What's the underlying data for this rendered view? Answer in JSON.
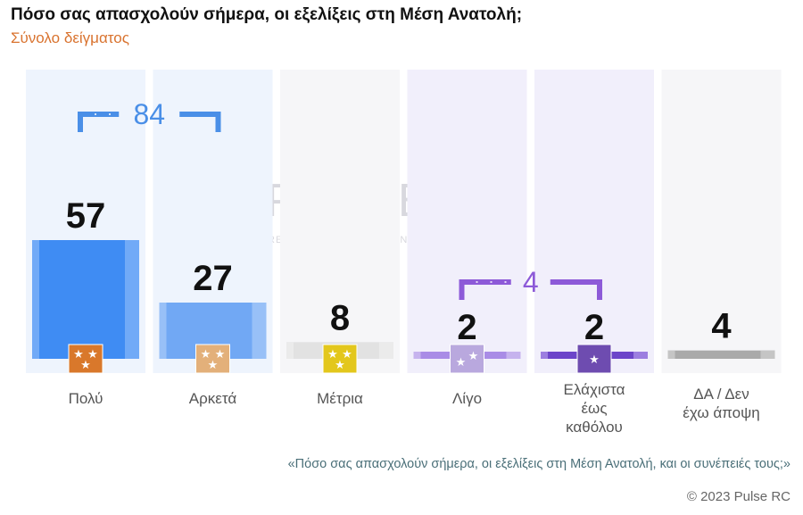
{
  "title": "Πόσο σας απασχολούν σήμερα, οι εξελίξεις στη Μέση Ανατολή;",
  "subtitle": "Σύνολο δείγματος",
  "question": "«Πόσο  σας απασχολούν σήμερα, οι εξελίξεις στη Μέση Ανατολή, και οι συνέπειές τους;»",
  "copyright": "© 2023 Pulse RC",
  "watermark": {
    "brand": "PULSE",
    "tagline": "RESEARCH & CONSULTING"
  },
  "chart_data": {
    "type": "bar",
    "categories": [
      "Πολύ",
      "Αρκετά",
      "Μέτρια",
      "Λίγο",
      "Ελάχιστα έως καθόλου",
      "ΔΑ / Δεν έχω άποψη"
    ],
    "category_lines": [
      [
        "Πολύ"
      ],
      [
        "Αρκετά"
      ],
      [
        "Μέτρια"
      ],
      [
        "Λίγο"
      ],
      [
        "Ελάχιστα",
        "έως",
        "καθόλου"
      ],
      [
        "ΔΑ / Δεν",
        "έχω άποψη"
      ]
    ],
    "values": [
      57,
      27,
      8,
      2,
      2,
      4
    ],
    "value_labels": [
      "57",
      "27",
      "8",
      "2",
      "2",
      "4"
    ],
    "star_counts": [
      3,
      3,
      3,
      2,
      1,
      0
    ],
    "brackets": [
      {
        "label": "84",
        "from": 0,
        "to": 1,
        "color": "#4a8fe7"
      },
      {
        "label": "4",
        "from": 3,
        "to": 4,
        "color": "#8d5ad8"
      }
    ],
    "colors": {
      "column_bg": [
        "#eef4fd",
        "#eef4fd",
        "#f6f6f8",
        "#f1effb",
        "#f1effb",
        "#f6f6f8"
      ],
      "bar": [
        "#3f8cf3",
        "#71a8f4",
        "#e2e2e2",
        "#a98ce6",
        "#6c45c9",
        "#aaaaaa"
      ],
      "bar_edge": [
        "#7eb2f7",
        "#a3c6f7",
        "#eeeeee",
        "#cdbdf0",
        "#a98ce6",
        "#cccccc"
      ],
      "badge": [
        "#d9782b",
        "#e3b07a",
        "#e3c71c",
        "#b9a8de",
        "#6e4cb0",
        null
      ]
    },
    "ylim": [
      0,
      60
    ]
  }
}
